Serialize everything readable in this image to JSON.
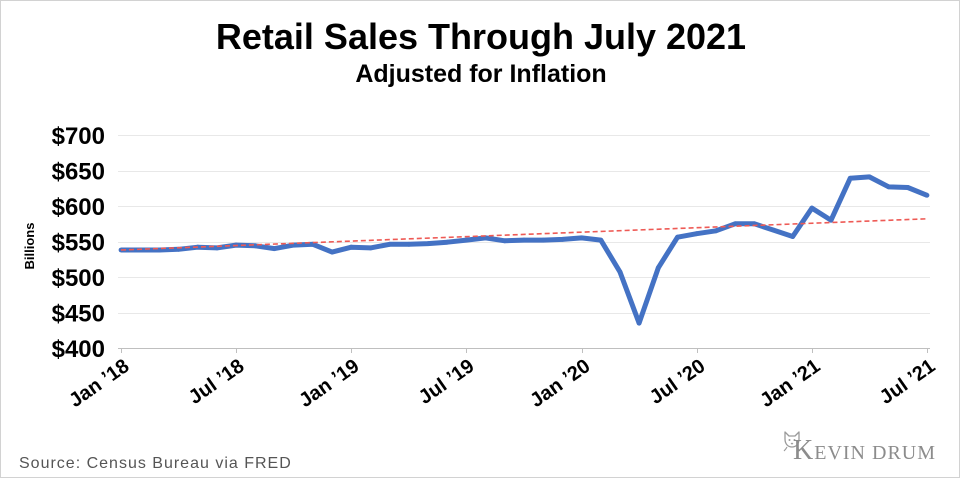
{
  "title": "Retail Sales Through July 2021",
  "subtitle": "Adjusted for Inflation",
  "source": "Source: Census Bureau via FRED",
  "logo": {
    "text": "KEVIN DRUM",
    "icon": "cat-icon"
  },
  "colors": {
    "grid": "#E8E8E8",
    "axis": "#BFBFBF"
  },
  "chart_data": {
    "type": "line",
    "title": "Retail Sales Through July 2021",
    "subtitle": "Adjusted for Inflation",
    "xlabel": "",
    "ylabel": "Billions",
    "ylim": [
      400,
      700
    ],
    "yticks": [
      400,
      450,
      500,
      550,
      600,
      650,
      700
    ],
    "ytick_labels": [
      "$400",
      "$450",
      "$500",
      "$550",
      "$600",
      "$650",
      "$700"
    ],
    "xlim": [
      "2018-01",
      "2021-07"
    ],
    "xticks": [
      "2018-01",
      "2018-07",
      "2019-01",
      "2019-07",
      "2020-01",
      "2020-07",
      "2021-01",
      "2021-07"
    ],
    "xtick_labels": [
      "Jan ’18",
      "Jul ’18",
      "Jan ’19",
      "Jul ’19",
      "Jan ’20",
      "Jul ’20",
      "Jan ’21",
      "Jul ’21"
    ],
    "x": [
      "2018-01",
      "2018-02",
      "2018-03",
      "2018-04",
      "2018-05",
      "2018-06",
      "2018-07",
      "2018-08",
      "2018-09",
      "2018-10",
      "2018-11",
      "2018-12",
      "2019-01",
      "2019-02",
      "2019-03",
      "2019-04",
      "2019-05",
      "2019-06",
      "2019-07",
      "2019-08",
      "2019-09",
      "2019-10",
      "2019-11",
      "2019-12",
      "2020-01",
      "2020-02",
      "2020-03",
      "2020-04",
      "2020-05",
      "2020-06",
      "2020-07",
      "2020-08",
      "2020-09",
      "2020-10",
      "2020-11",
      "2020-12",
      "2021-01",
      "2021-02",
      "2021-03",
      "2021-04",
      "2021-05",
      "2021-06",
      "2021-07"
    ],
    "series": [
      {
        "color": "#4472C4",
        "style": "solid",
        "values": [
          538,
          538,
          538,
          539,
          542,
          541,
          545,
          544,
          540,
          545,
          546,
          535,
          542,
          541,
          546,
          546,
          547,
          549,
          552,
          555,
          551,
          552,
          552,
          553,
          555,
          552,
          507,
          435,
          513,
          556,
          561,
          565,
          575,
          575,
          566,
          557,
          597,
          580,
          639,
          641,
          627,
          626,
          615
        ]
      }
    ],
    "trend": {
      "color": "#EE5A55",
      "style": "dashed",
      "x": [
        "2018-01",
        "2021-07"
      ],
      "values": [
        538,
        582
      ]
    },
    "grid": true,
    "legend": "none"
  }
}
